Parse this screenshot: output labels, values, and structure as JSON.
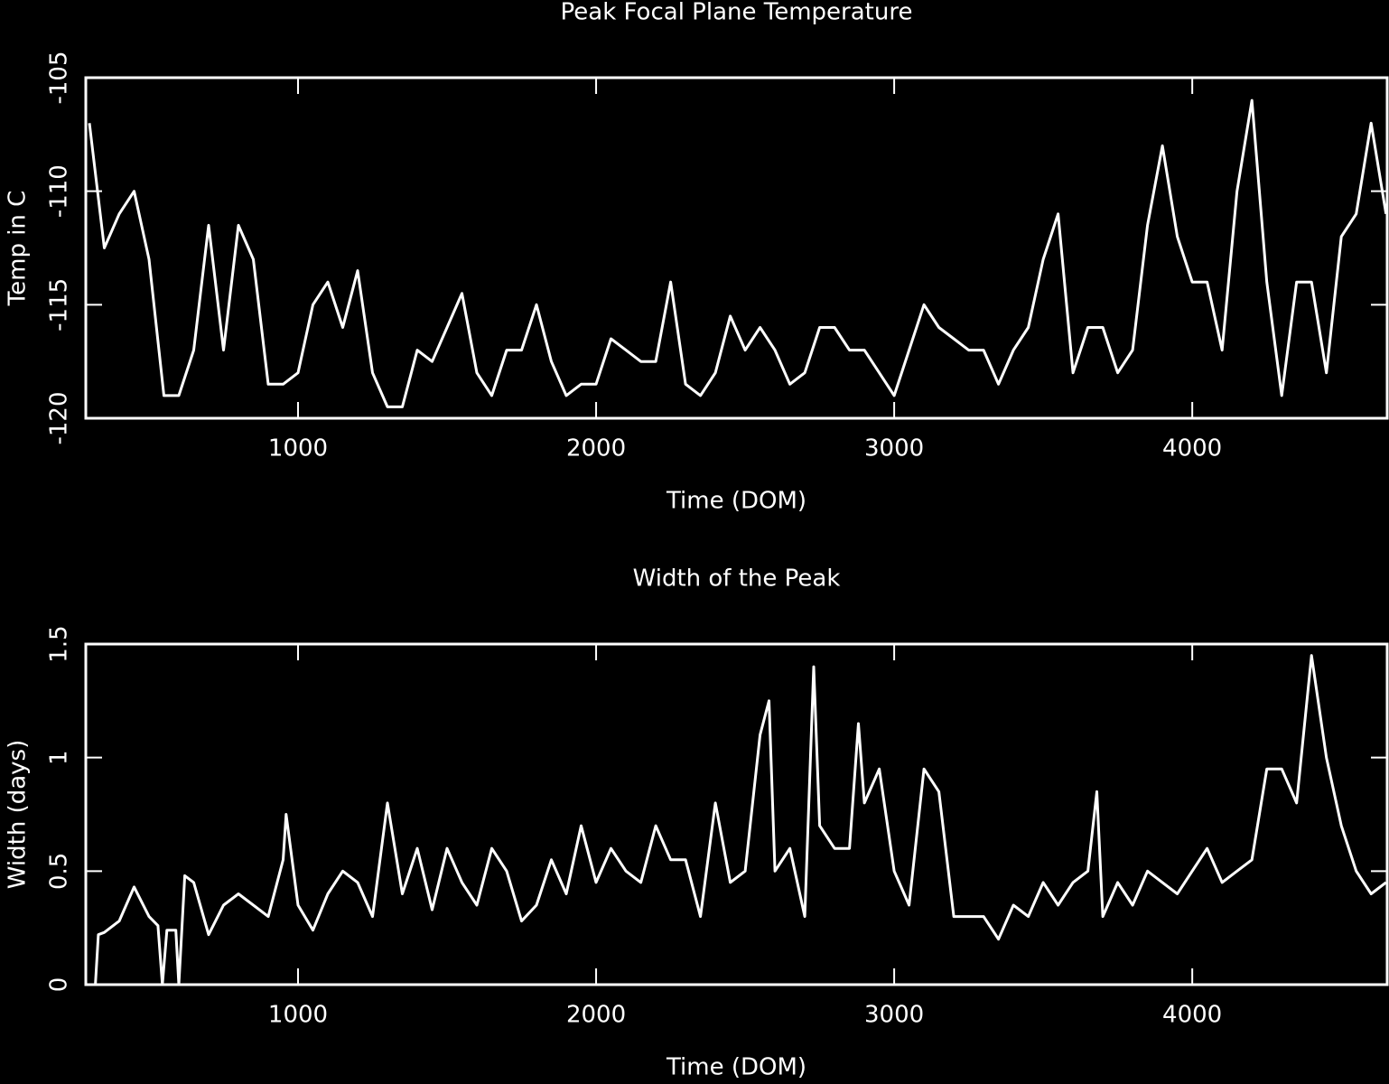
{
  "chart_data": [
    {
      "type": "line",
      "title": "Peak Focal Plane Temperature",
      "xlabel": "Time (DOM)",
      "ylabel": "Temp in C",
      "xlim": [
        288,
        4654
      ],
      "ylim": [
        -120,
        -105
      ],
      "xticks": [
        1000,
        2000,
        3000,
        4000
      ],
      "yticks": [
        -120,
        -115,
        -110,
        -105
      ],
      "series": [
        {
          "color": "#ffffff",
          "x": [
            300,
            350,
            400,
            450,
            500,
            550,
            600,
            650,
            700,
            750,
            800,
            850,
            900,
            950,
            1000,
            1050,
            1100,
            1150,
            1200,
            1250,
            1300,
            1350,
            1400,
            1450,
            1500,
            1550,
            1600,
            1650,
            1700,
            1750,
            1800,
            1850,
            1900,
            1950,
            2000,
            2050,
            2100,
            2150,
            2200,
            2250,
            2300,
            2350,
            2400,
            2450,
            2500,
            2550,
            2600,
            2650,
            2700,
            2750,
            2800,
            2850,
            2900,
            2950,
            3000,
            3050,
            3100,
            3150,
            3200,
            3250,
            3300,
            3350,
            3400,
            3450,
            3500,
            3550,
            3600,
            3650,
            3700,
            3750,
            3800,
            3850,
            3900,
            3950,
            4000,
            4050,
            4100,
            4150,
            4200,
            4250,
            4300,
            4350,
            4400,
            4450,
            4500,
            4550,
            4600,
            4650
          ],
          "values": [
            -107,
            -112.5,
            -111,
            -110,
            -113,
            -119,
            -119,
            -117,
            -111.5,
            -117,
            -111.5,
            -113,
            -118.5,
            -118.5,
            -118,
            -115,
            -114,
            -116,
            -113.5,
            -118,
            -119.5,
            -119.5,
            -117,
            -117.5,
            -116,
            -114.5,
            -118,
            -119,
            -117,
            -117,
            -115,
            -117.5,
            -119,
            -118.5,
            -118.5,
            -116.5,
            -117,
            -117.5,
            -117.5,
            -114,
            -118.5,
            -119,
            -118,
            -115.5,
            -117,
            -116,
            -117,
            -118.5,
            -118,
            -116,
            -116,
            -117,
            -117,
            -118,
            -119,
            -117,
            -115,
            -116,
            -116.5,
            -117,
            -117,
            -118.5,
            -117,
            -116,
            -113,
            -111,
            -118,
            -116,
            -116,
            -118,
            -117,
            -111.5,
            -108,
            -112,
            -114,
            -114,
            -117,
            -110,
            -106,
            -114,
            -119,
            -114,
            -114,
            -118,
            -112,
            -111,
            -107,
            -111
          ]
        }
      ]
    },
    {
      "type": "line",
      "title": "Width of the Peak",
      "xlabel": "Time (DOM)",
      "ylabel": "Width (days)",
      "xlim": [
        288,
        4654
      ],
      "ylim": [
        0,
        1.5
      ],
      "xticks": [
        1000,
        2000,
        3000,
        4000
      ],
      "yticks": [
        0,
        0.5,
        1,
        1.5
      ],
      "series": [
        {
          "color": "#ffffff",
          "x": [
            320,
            330,
            350,
            400,
            450,
            500,
            530,
            545,
            560,
            590,
            600,
            620,
            650,
            700,
            750,
            800,
            850,
            900,
            950,
            960,
            1000,
            1050,
            1100,
            1150,
            1200,
            1250,
            1300,
            1350,
            1400,
            1450,
            1500,
            1550,
            1600,
            1650,
            1700,
            1750,
            1800,
            1850,
            1900,
            1950,
            2000,
            2050,
            2100,
            2150,
            2200,
            2250,
            2300,
            2350,
            2400,
            2450,
            2500,
            2550,
            2580,
            2600,
            2650,
            2700,
            2730,
            2750,
            2800,
            2850,
            2880,
            2900,
            2950,
            3000,
            3050,
            3100,
            3150,
            3200,
            3250,
            3300,
            3350,
            3400,
            3450,
            3500,
            3550,
            3600,
            3650,
            3680,
            3700,
            3750,
            3800,
            3850,
            3900,
            3950,
            4000,
            4050,
            4100,
            4150,
            4200,
            4250,
            4300,
            4350,
            4400,
            4450,
            4500,
            4550,
            4600,
            4650
          ],
          "values": [
            0,
            0.22,
            0.23,
            0.28,
            0.43,
            0.3,
            0.26,
            0,
            0.24,
            0.24,
            0,
            0.48,
            0.45,
            0.22,
            0.35,
            0.4,
            0.35,
            0.3,
            0.55,
            0.75,
            0.35,
            0.24,
            0.4,
            0.5,
            0.45,
            0.3,
            0.8,
            0.4,
            0.6,
            0.33,
            0.6,
            0.45,
            0.35,
            0.6,
            0.5,
            0.28,
            0.35,
            0.55,
            0.4,
            0.7,
            0.45,
            0.6,
            0.5,
            0.45,
            0.7,
            0.55,
            0.55,
            0.3,
            0.8,
            0.45,
            0.5,
            1.1,
            1.25,
            0.5,
            0.6,
            0.3,
            1.4,
            0.7,
            0.6,
            0.6,
            1.15,
            0.8,
            0.95,
            0.5,
            0.35,
            0.95,
            0.85,
            0.3,
            0.3,
            0.3,
            0.2,
            0.35,
            0.3,
            0.45,
            0.35,
            0.45,
            0.5,
            0.85,
            0.3,
            0.45,
            0.35,
            0.5,
            0.45,
            0.4,
            0.5,
            0.6,
            0.45,
            0.5,
            0.55,
            0.95,
            0.95,
            0.8,
            1.45,
            1.0,
            0.7,
            0.5,
            0.4,
            0.45
          ]
        }
      ]
    }
  ]
}
